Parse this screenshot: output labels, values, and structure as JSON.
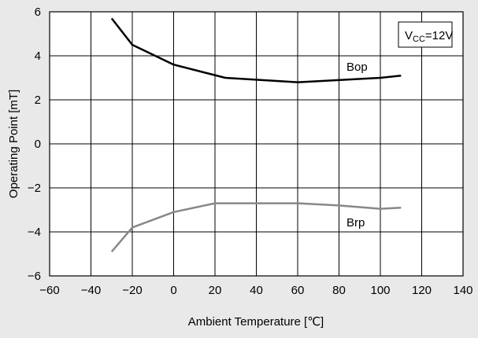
{
  "chart_data": {
    "type": "line",
    "xlabel": "Ambient Temperature [℃]",
    "ylabel": "Operating Point [mT]",
    "xlim": [
      -60,
      140
    ],
    "ylim": [
      -6,
      6
    ],
    "x_ticks": [
      -60,
      -40,
      -20,
      0,
      20,
      40,
      60,
      80,
      100,
      120,
      140
    ],
    "y_ticks": [
      -6,
      -4,
      -2,
      0,
      2,
      4,
      6
    ],
    "x_tick_labels": [
      "−60",
      "−40",
      "−20",
      "0",
      "20",
      "40",
      "60",
      "80",
      "100",
      "120",
      "140"
    ],
    "y_tick_labels": [
      "−6",
      "−4",
      "−2",
      "0",
      "2",
      "4",
      "6"
    ],
    "grid": true,
    "legend_box": {
      "v_main": "V",
      "v_sub": "CC",
      "value": "=12V",
      "placement": "top-right"
    },
    "series": [
      {
        "name": "Bop",
        "color": "#000000",
        "x": [
          -30,
          -20,
          0,
          25,
          60,
          100,
          110
        ],
        "y": [
          5.7,
          4.5,
          3.6,
          3.0,
          2.8,
          3.0,
          3.1
        ]
      },
      {
        "name": "Brp",
        "color": "#888888",
        "x": [
          -30,
          -20,
          0,
          20,
          40,
          60,
          80,
          100,
          110
        ],
        "y": [
          -4.9,
          -3.8,
          -3.1,
          -2.7,
          -2.7,
          -2.7,
          -2.8,
          -2.95,
          -2.9
        ]
      }
    ]
  }
}
